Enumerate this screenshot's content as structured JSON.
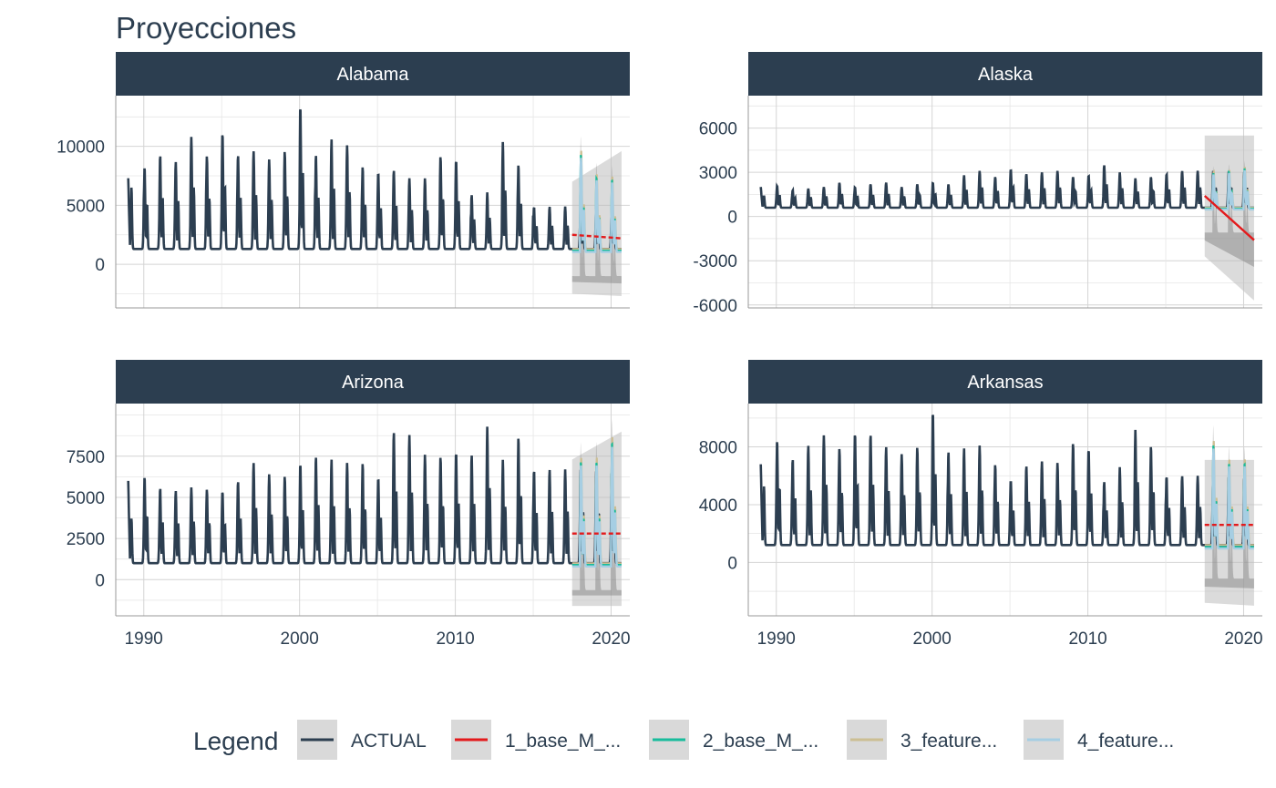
{
  "chart_data": {
    "type": "line",
    "title": "Proyecciones",
    "legend": {
      "title": "Legend",
      "placement": "bottom",
      "entries": [
        {
          "label": "ACTUAL",
          "color": "#2c3e50"
        },
        {
          "label": "1_base_M_...",
          "color": "#e31a1c"
        },
        {
          "label": "2_base_M_...",
          "color": "#18bc9c"
        },
        {
          "label": "3_feature...",
          "color": "#ccbe93"
        },
        {
          "label": "4_feature...",
          "color": "#a6cee3"
        }
      ]
    },
    "grid": true,
    "band_color": "#bdbdbd",
    "x_ticks": [
      1990,
      2000,
      2010,
      2020
    ],
    "xlim": [
      1988.2,
      2021.2
    ],
    "forecast_range": [
      2017.5,
      2020.67
    ],
    "panels": [
      {
        "name": "Alabama",
        "ylim": [
          -3700,
          14300
        ],
        "yticks": [
          0,
          5000,
          10000
        ],
        "ytick_labels": [
          "0",
          "5000",
          "10000"
        ],
        "actual": {
          "base": 1300,
          "peaks": [
            10900,
            8300,
            9300,
            8700,
            10800,
            9200,
            11200,
            9300,
            9600,
            8900,
            9600,
            13500,
            9300,
            10600,
            10100,
            8300,
            7800,
            8000,
            7300,
            7300,
            9200,
            8900,
            5900,
            6100,
            10400,
            8500,
            4900
          ],
          "start": 1989.0,
          "end": 2020.67,
          "start_value": 7300
        },
        "forecast": {
          "base_model": [
            2500,
            2200
          ],
          "peaks": [
            9500,
            7500,
            7300
          ],
          "band_ranges": [
            [
              -2500,
              7000
            ],
            [
              -2700,
              9600
            ]
          ]
        }
      },
      {
        "name": "Alaska",
        "ylim": [
          -6200,
          8200
        ],
        "yticks": [
          -6000,
          -3000,
          0,
          3000,
          6000
        ],
        "ytick_labels": [
          "-6000",
          "-3000",
          "0",
          "3000",
          "6000"
        ],
        "actual": {
          "base": 600,
          "peaks": [
            2100,
            2100,
            1800,
            1900,
            2000,
            2300,
            2000,
            2200,
            2300,
            2000,
            2200,
            2300,
            2200,
            2800,
            3100,
            2700,
            3200,
            2900,
            3000,
            3100,
            2700,
            2800,
            3500,
            3000,
            2600,
            2700,
            2900,
            3100
          ],
          "start": 1989.0,
          "end": 2020.67,
          "start_value": 2000
        },
        "forecast": {
          "base_model": [
            1400,
            -1600
          ],
          "peaks": [
            3000,
            3100,
            3300
          ],
          "band_ranges": [
            [
              -2700,
              5500
            ],
            [
              -5700,
              5500
            ]
          ]
        }
      },
      {
        "name": "Arizona",
        "ylim": [
          -2200,
          10700
        ],
        "yticks": [
          0,
          2500,
          5000,
          7500
        ],
        "ytick_labels": [
          "0",
          "2500",
          "5000",
          "7500"
        ],
        "actual": {
          "base": 1000,
          "peaks": [
            6000,
            6300,
            5600,
            5400,
            5600,
            5500,
            5400,
            6000,
            7100,
            6400,
            6300,
            7100,
            7500,
            7300,
            7100,
            7100,
            6200,
            9000,
            8800,
            7600,
            7500,
            7800,
            7600,
            9300,
            7300,
            8700,
            6700
          ],
          "start": 1989.0,
          "end": 2020.67,
          "start_value": 6000
        },
        "forecast": {
          "base_model": [
            2800,
            2800
          ],
          "peaks": [
            7300,
            7300,
            8500
          ],
          "band_ranges": [
            [
              -1600,
              7300
            ],
            [
              -1600,
              9000
            ]
          ]
        }
      },
      {
        "name": "Arkansas",
        "ylim": [
          -3700,
          11000
        ],
        "yticks": [
          0,
          4000,
          8000
        ],
        "ytick_labels": [
          "0",
          "4000",
          "8000"
        ],
        "actual": {
          "base": 1200,
          "peaks": [
            8700,
            8500,
            7200,
            8100,
            8800,
            7900,
            9000,
            8900,
            8000,
            7500,
            8000,
            10500,
            7700,
            7900,
            8100,
            6800,
            5700,
            6700,
            7000,
            6900,
            8300,
            7900,
            5600,
            6600,
            9200,
            8100,
            6000
          ],
          "start": 1989.0,
          "end": 2020.67,
          "start_value": 6800
        },
        "forecast": {
          "base_model": [
            2600,
            2600
          ],
          "peaks": [
            8300,
            7000,
            7000
          ],
          "band_ranges": [
            [
              -2800,
              7100
            ],
            [
              -3000,
              7100
            ]
          ]
        }
      }
    ]
  }
}
